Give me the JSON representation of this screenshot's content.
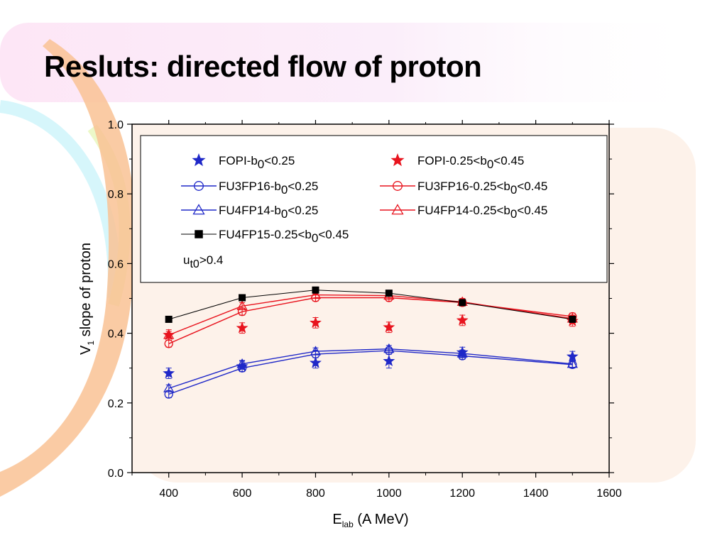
{
  "slide": {
    "title": "Resluts: directed flow of proton"
  },
  "chart_data": {
    "type": "scatter",
    "xlabel": {
      "main": "E",
      "sub": "lab",
      "unit": " (A MeV)"
    },
    "ylabel": {
      "pre": "V",
      "sub": "1",
      "post": " slope of proton"
    },
    "xlim": [
      300,
      1600
    ],
    "ylim": [
      0.0,
      1.0
    ],
    "xticks": [
      "400",
      "600",
      "800",
      "1000",
      "1200",
      "1400",
      "1600"
    ],
    "yticks": [
      "0.0",
      "0.2",
      "0.4",
      "0.6",
      "0.8",
      "1.0"
    ],
    "legend_note": {
      "pre": "u",
      "sub": "t0",
      "post": ">0.4"
    },
    "series": [
      {
        "name": {
          "pre": "FOPI-b",
          "sub": "0",
          "post": "<0.25"
        },
        "color": "#1f28c8",
        "marker": "star",
        "line": false,
        "x": [
          400,
          600,
          800,
          1000,
          1200,
          1500
        ],
        "y": [
          0.285,
          0.305,
          0.315,
          0.32,
          0.345,
          0.333
        ],
        "err": [
          0.015,
          0.015,
          0.015,
          0.02,
          0.015,
          0.015
        ]
      },
      {
        "name": {
          "pre": "FOPI-0.25<b",
          "sub": "0",
          "post": "<0.45"
        },
        "color": "#e8141e",
        "marker": "star",
        "line": false,
        "x": [
          400,
          600,
          800,
          1000,
          1200,
          1500
        ],
        "y": [
          0.395,
          0.415,
          0.43,
          0.417,
          0.437,
          0.435
        ],
        "err": [
          0.015,
          0.015,
          0.015,
          0.015,
          0.015,
          0.015
        ]
      },
      {
        "name": {
          "pre": "FU3FP16-b",
          "sub": "0",
          "post": "<0.25"
        },
        "color": "#1f28c8",
        "marker": "circle",
        "line": true,
        "x": [
          400,
          600,
          800,
          1000,
          1200,
          1500
        ],
        "y": [
          0.225,
          0.3,
          0.34,
          0.35,
          0.335,
          0.31
        ],
        "err": [
          0.01,
          0.01,
          0.01,
          0.01,
          0.01,
          0.01
        ]
      },
      {
        "name": {
          "pre": "FU3FP16-0.25<b",
          "sub": "0",
          "post": "<0.45"
        },
        "color": "#e8141e",
        "marker": "circle",
        "line": true,
        "x": [
          400,
          600,
          800,
          1000,
          1200,
          1500
        ],
        "y": [
          0.37,
          0.462,
          0.502,
          0.502,
          0.488,
          0.448
        ],
        "err": [
          0.01,
          0.01,
          0.01,
          0.01,
          0.01,
          0.01
        ]
      },
      {
        "name": {
          "pre": "FU4FP14-b",
          "sub": "0",
          "post": "<0.25"
        },
        "color": "#1f28c8",
        "marker": "triangle",
        "line": true,
        "x": [
          400,
          600,
          800,
          1000,
          1200,
          1500
        ],
        "y": [
          0.242,
          0.312,
          0.348,
          0.355,
          0.342,
          0.312
        ],
        "err": [
          0.01,
          0.01,
          0.01,
          0.01,
          0.01,
          0.01
        ]
      },
      {
        "name": {
          "pre": "FU4FP14-0.25<b",
          "sub": "0",
          "post": "<0.45"
        },
        "color": "#e8141e",
        "marker": "triangle",
        "line": true,
        "x": [
          400,
          600,
          800,
          1000,
          1200,
          1500
        ],
        "y": [
          0.395,
          0.478,
          0.51,
          0.508,
          0.49,
          0.442
        ],
        "err": [
          0.01,
          0.01,
          0.01,
          0.01,
          0.01,
          0.01
        ]
      },
      {
        "name": {
          "pre": "FU4FP15-0.25<b",
          "sub": "0",
          "post": "<0.45"
        },
        "color": "#000000",
        "marker": "square",
        "line": true,
        "x": [
          400,
          600,
          800,
          1000,
          1200,
          1500
        ],
        "y": [
          0.44,
          0.502,
          0.524,
          0.515,
          0.488,
          0.44
        ],
        "err": [
          0,
          0,
          0,
          0,
          0,
          0
        ]
      }
    ]
  }
}
